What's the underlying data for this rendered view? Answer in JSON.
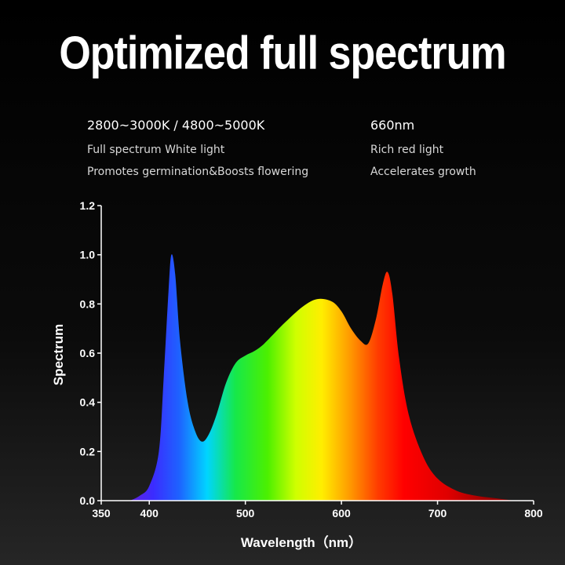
{
  "header": {
    "title": "Optimized full spectrum"
  },
  "info": {
    "left": {
      "heading": "2800~3000K / 4800~5000K",
      "line1": "Full spectrum White light",
      "line2": "Promotes germination&Boosts flowering"
    },
    "right": {
      "heading": "660nm",
      "line1": "Rich red light",
      "line2": "Accelerates growth"
    }
  },
  "chart_data": {
    "type": "area",
    "title": "",
    "xlabel": "Wavelength（nm）",
    "ylabel": "Spectrum",
    "xlim": [
      350,
      800
    ],
    "ylim": [
      0,
      1.2
    ],
    "x_ticks": [
      "350",
      "400",
      "500",
      "600",
      "700",
      "800"
    ],
    "y_ticks": [
      "0.0",
      "0.2",
      "0.4",
      "0.6",
      "0.8",
      "1.0",
      "1.2"
    ],
    "grid": false,
    "series": [
      {
        "x": [
          380,
          390,
          400,
          410,
          415,
          420,
          423,
          427,
          432,
          440,
          448,
          455,
          462,
          470,
          480,
          490,
          500,
          510,
          520,
          540,
          560,
          575,
          590,
          600,
          610,
          620,
          628,
          636,
          643,
          648,
          653,
          660,
          670,
          685,
          700,
          720,
          740,
          760,
          780
        ],
        "values": [
          0.0,
          0.02,
          0.06,
          0.2,
          0.5,
          0.85,
          1.0,
          0.92,
          0.65,
          0.4,
          0.28,
          0.24,
          0.27,
          0.35,
          0.48,
          0.56,
          0.59,
          0.61,
          0.64,
          0.72,
          0.79,
          0.82,
          0.81,
          0.77,
          0.7,
          0.65,
          0.64,
          0.74,
          0.88,
          0.93,
          0.84,
          0.58,
          0.35,
          0.18,
          0.09,
          0.04,
          0.02,
          0.01,
          0.0
        ]
      }
    ]
  }
}
